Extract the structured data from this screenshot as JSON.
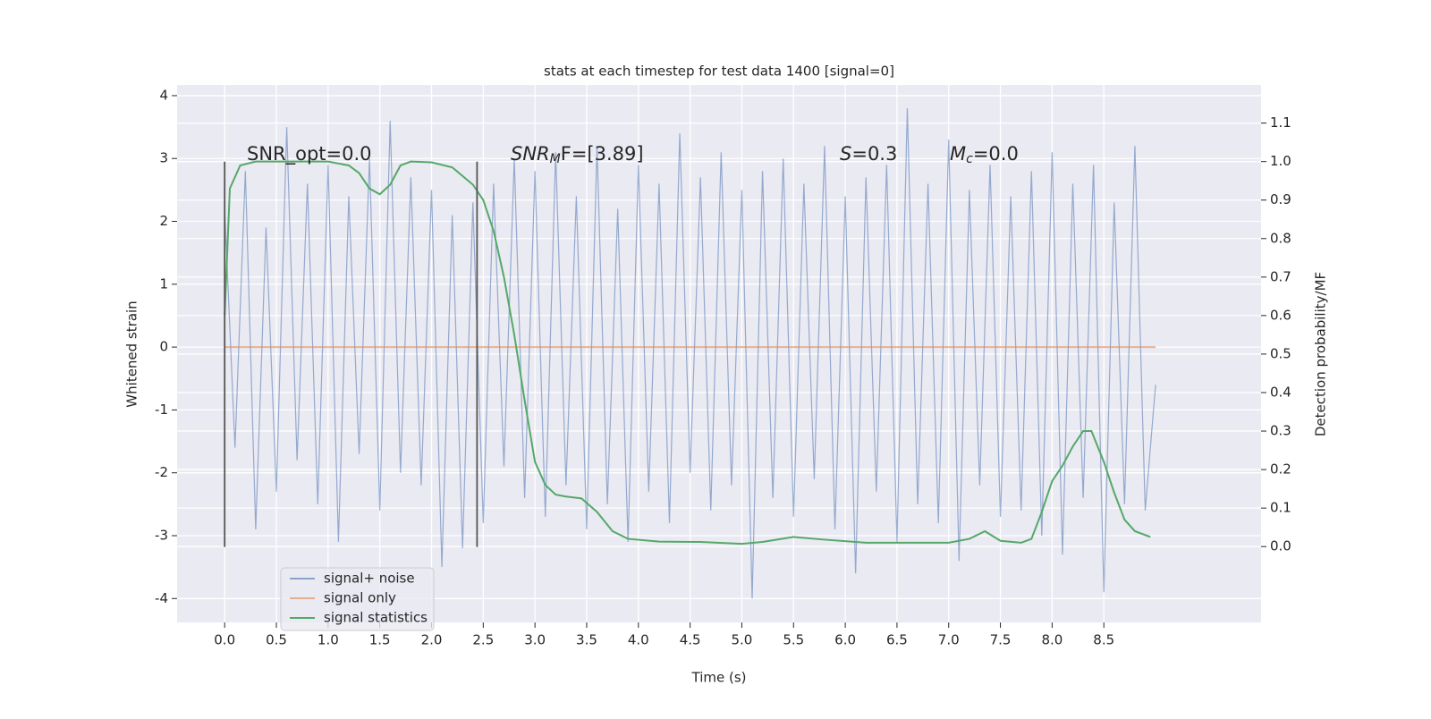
{
  "chart_data": {
    "type": "line",
    "title": "stats at each timestep for test data 1400 [signal=0]",
    "xlabel": "Time (s)",
    "ylabel": "Whitened strain",
    "y2label": "Detection probability/MF",
    "xlim": [
      -0.46,
      10.02
    ],
    "ylim": [
      -4.38,
      4.17
    ],
    "y2lim": [
      -0.197,
      1.199
    ],
    "xticks": [
      {
        "value": 0,
        "label": "0.0"
      },
      0.5,
      {
        "value": 1,
        "label": "1.0"
      },
      1.5,
      {
        "value": 2,
        "label": "2.0"
      },
      2.5,
      {
        "value": 3,
        "label": "3.0"
      },
      3.5,
      {
        "value": 4,
        "label": "4.0"
      },
      4.5,
      {
        "value": 5,
        "label": "5.0"
      },
      5.5,
      {
        "value": 6,
        "label": "6.0"
      },
      6.5,
      {
        "value": 7,
        "label": "7.0"
      },
      7.5,
      {
        "value": 8,
        "label": "8.0"
      },
      8.5
    ],
    "yticks": [
      -4,
      -3,
      -2,
      -1,
      0,
      1,
      2,
      3,
      4
    ],
    "y2ticks": [
      {
        "value": 0,
        "label": "0.0"
      },
      0.1,
      0.2,
      0.3,
      0.4,
      0.5,
      0.6,
      0.7,
      0.8,
      0.9,
      {
        "value": 1,
        "label": "1.0"
      },
      1.1
    ],
    "grid": true,
    "legend": "lower left",
    "vlines": [
      0,
      2.44
    ],
    "vline_ylim": [
      -3.18,
      2.95
    ],
    "vline_color": "#555555",
    "annotations": [
      {
        "text": "SNR_opt=0.0"
      },
      {
        "math": "SNR",
        "sub": "M",
        "text": "F=[3.89]"
      },
      {
        "math": "S",
        "text": "=0.3"
      },
      {
        "math": "M",
        "sub": "c",
        "text": "=0.0"
      }
    ],
    "series": [
      {
        "name": "signal+ noise",
        "color": "#4c72b0",
        "x": [
          0,
          0.1,
          0.2,
          0.3,
          0.4,
          0.5,
          0.6,
          0.7,
          0.8,
          0.9,
          1,
          1.1,
          1.2,
          1.3,
          1.4,
          1.5,
          1.6,
          1.7,
          1.8,
          1.9,
          2,
          2.1,
          2.2,
          2.3,
          2.4,
          2.5,
          2.6,
          2.7,
          2.8,
          2.9,
          3,
          3.1,
          3.2,
          3.3,
          3.4,
          3.5,
          3.6,
          3.7,
          3.8,
          3.9,
          4,
          4.1,
          4.2,
          4.3,
          4.4,
          4.5,
          4.6,
          4.7,
          4.8,
          4.9,
          5,
          5.1,
          5.2,
          5.3,
          5.4,
          5.5,
          5.6,
          5.7,
          5.8,
          5.9,
          6,
          6.1,
          6.2,
          6.3,
          6.4,
          6.5,
          6.6,
          6.7,
          6.8,
          6.9,
          7,
          7.1,
          7.2,
          7.3,
          7.4,
          7.5,
          7.6,
          7.7,
          7.8,
          7.9,
          8,
          8.1,
          8.2,
          8.3,
          8.4,
          8.5,
          8.6,
          8.7,
          8.8,
          8.9,
          9
        ],
        "values": [
          2.2,
          -1.6,
          2.8,
          -2.9,
          1.9,
          -2.3,
          3.5,
          -1.8,
          2.6,
          -2.5,
          2.9,
          -3.1,
          2.4,
          -1.7,
          3.0,
          -2.6,
          3.6,
          -2.0,
          2.7,
          -2.2,
          2.5,
          -3.5,
          2.1,
          -3.2,
          2.3,
          -2.8,
          2.6,
          -1.9,
          3.0,
          -2.4,
          2.8,
          -2.7,
          3.1,
          -2.2,
          2.4,
          -2.9,
          3.2,
          -2.5,
          2.2,
          -3.1,
          2.9,
          -2.3,
          2.6,
          -2.8,
          3.4,
          -2.0,
          2.7,
          -2.6,
          3.1,
          -2.2,
          2.5,
          -4.0,
          2.8,
          -2.4,
          3.0,
          -2.7,
          2.6,
          -2.1,
          3.2,
          -2.9,
          2.4,
          -3.6,
          2.7,
          -2.3,
          2.9,
          -3.1,
          3.8,
          -2.5,
          2.6,
          -2.8,
          3.3,
          -3.4,
          2.5,
          -2.2,
          2.9,
          -2.7,
          2.4,
          -2.6,
          2.8,
          -3.0,
          3.1,
          -3.3,
          2.6,
          -2.4,
          2.9,
          -3.9,
          2.3,
          -2.5,
          3.2,
          -2.6,
          -0.6
        ]
      },
      {
        "name": "signal only",
        "color": "#dd8452",
        "x": [
          0,
          9
        ],
        "values": [
          0,
          0
        ]
      },
      {
        "name": "signal statistics",
        "color": "#55a868",
        "axis": "y2",
        "x": [
          0,
          0.05,
          0.15,
          0.3,
          0.6,
          1.0,
          1.2,
          1.3,
          1.4,
          1.5,
          1.6,
          1.7,
          1.8,
          2.0,
          2.2,
          2.4,
          2.5,
          2.6,
          2.7,
          2.8,
          2.9,
          3.0,
          3.1,
          3.2,
          3.3,
          3.45,
          3.6,
          3.75,
          3.9,
          4.2,
          4.6,
          5.0,
          5.2,
          5.5,
          5.8,
          6.2,
          6.6,
          7.0,
          7.2,
          7.35,
          7.5,
          7.7,
          7.8,
          7.9,
          8.0,
          8.1,
          8.2,
          8.3,
          8.38,
          8.5,
          8.6,
          8.7,
          8.8,
          8.95
        ],
        "values": [
          0.6,
          0.93,
          0.99,
          1.0,
          1.0,
          1.0,
          0.99,
          0.97,
          0.93,
          0.915,
          0.94,
          0.99,
          1.0,
          0.998,
          0.985,
          0.94,
          0.9,
          0.82,
          0.7,
          0.55,
          0.38,
          0.22,
          0.16,
          0.135,
          0.13,
          0.125,
          0.09,
          0.04,
          0.02,
          0.013,
          0.012,
          0.007,
          0.012,
          0.025,
          0.018,
          0.01,
          0.01,
          0.01,
          0.02,
          0.04,
          0.015,
          0.01,
          0.02,
          0.09,
          0.17,
          0.21,
          0.26,
          0.3,
          0.3,
          0.22,
          0.14,
          0.07,
          0.04,
          0.025
        ]
      }
    ]
  }
}
